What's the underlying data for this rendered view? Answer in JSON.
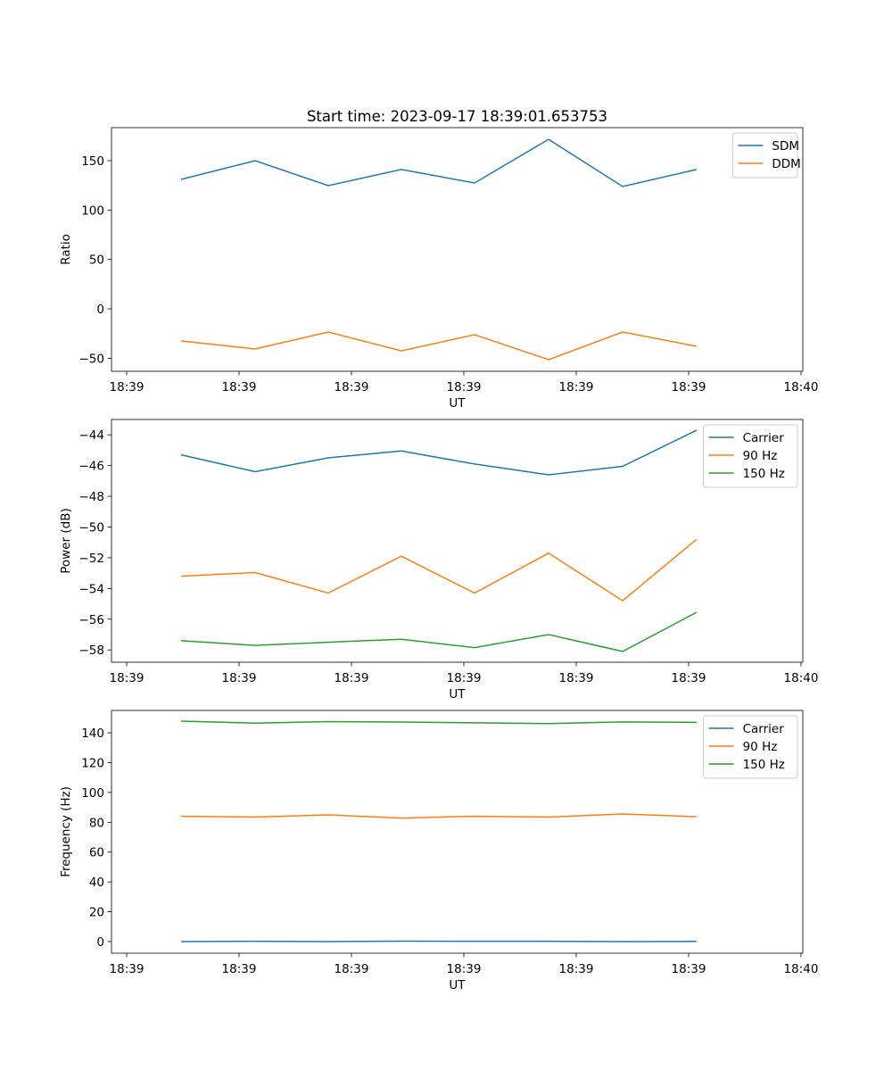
{
  "chart_data": [
    {
      "type": "line",
      "title": "Start time: 2023-09-17 18:39:01.653753",
      "xlabel": "UT",
      "ylabel": "Ratio",
      "x_unit": "seconds after 18:39:00",
      "xlim": [
        -1.35,
        60.16
      ],
      "ylim": [
        -63.2,
        183.4
      ],
      "xticks": [
        0,
        10,
        20,
        30,
        40,
        50,
        60
      ],
      "xtick_labels": [
        "18:39",
        "18:39",
        "18:39",
        "18:39",
        "18:39",
        "18:39",
        "18:40"
      ],
      "yticks": [
        -50,
        0,
        50,
        100,
        150
      ],
      "ytick_labels": [
        "−50",
        "0",
        "50",
        "100",
        "150"
      ],
      "legend": "top-right",
      "x": [
        4.84,
        11.43,
        17.94,
        24.44,
        30.95,
        37.54,
        44.13,
        50.71
      ],
      "series": [
        {
          "name": "SDM",
          "color": "#1f77b4",
          "values": [
            131,
            150,
            124.7,
            141,
            127.4,
            171.6,
            123.8,
            141
          ]
        },
        {
          "name": "DDM",
          "color": "#ff7f0e",
          "values": [
            -32.5,
            -40.6,
            -23.5,
            -42.5,
            -26.2,
            -51.5,
            -23.5,
            -37.9
          ]
        }
      ]
    },
    {
      "type": "line",
      "title": "",
      "xlabel": "UT",
      "ylabel": "Power (dB)",
      "x_unit": "seconds after 18:39:00",
      "xlim": [
        -1.35,
        60.16
      ],
      "ylim": [
        -58.8,
        -43.0
      ],
      "xticks": [
        0,
        10,
        20,
        30,
        40,
        50,
        60
      ],
      "xtick_labels": [
        "18:39",
        "18:39",
        "18:39",
        "18:39",
        "18:39",
        "18:39",
        "18:40"
      ],
      "yticks": [
        -58,
        -56,
        -54,
        -52,
        -50,
        -48,
        -46,
        -44
      ],
      "ytick_labels": [
        "−58",
        "−56",
        "−54",
        "−52",
        "−50",
        "−48",
        "−46",
        "−44"
      ],
      "legend": "top-right",
      "x": [
        4.84,
        11.43,
        17.94,
        24.44,
        30.95,
        37.54,
        44.13,
        50.71
      ],
      "series": [
        {
          "name": "Carrier",
          "color": "#1f77b4",
          "values": [
            -45.3,
            -46.4,
            -45.5,
            -45.05,
            -45.9,
            -46.6,
            -46.05,
            -43.7
          ]
        },
        {
          "name": "90 Hz",
          "color": "#ff7f0e",
          "values": [
            -53.2,
            -52.96,
            -54.3,
            -51.9,
            -54.3,
            -51.7,
            -54.8,
            -50.8
          ]
        },
        {
          "name": "150 Hz",
          "color": "#2ca02c",
          "values": [
            -57.4,
            -57.7,
            -57.5,
            -57.3,
            -57.85,
            -57.0,
            -58.1,
            -55.55
          ]
        }
      ]
    },
    {
      "type": "line",
      "title": "",
      "xlabel": "UT",
      "ylabel": "Frequency (Hz)",
      "x_unit": "seconds after 18:39:00",
      "xlim": [
        -1.35,
        60.16
      ],
      "ylim": [
        -7.8,
        155
      ],
      "xticks": [
        0,
        10,
        20,
        30,
        40,
        50,
        60
      ],
      "xtick_labels": [
        "18:39",
        "18:39",
        "18:39",
        "18:39",
        "18:39",
        "18:39",
        "18:40"
      ],
      "yticks": [
        0,
        20,
        40,
        60,
        80,
        100,
        120,
        140
      ],
      "ytick_labels": [
        "0",
        "20",
        "40",
        "60",
        "80",
        "100",
        "120",
        "140"
      ],
      "legend": "top-right",
      "x": [
        4.84,
        11.43,
        17.94,
        24.44,
        30.95,
        37.54,
        44.13,
        50.71
      ],
      "series": [
        {
          "name": "Carrier",
          "color": "#1f77b4",
          "values": [
            0,
            0.2,
            0,
            0.3,
            0.2,
            0.2,
            0,
            0.1
          ]
        },
        {
          "name": "90 Hz",
          "color": "#ff7f0e",
          "values": [
            84,
            83.5,
            85,
            82.8,
            84,
            83.5,
            85.6,
            83.7
          ]
        },
        {
          "name": "150 Hz",
          "color": "#2ca02c",
          "values": [
            147.8,
            146.5,
            147.5,
            147.2,
            146.7,
            146.2,
            147.3,
            147
          ]
        }
      ]
    }
  ]
}
